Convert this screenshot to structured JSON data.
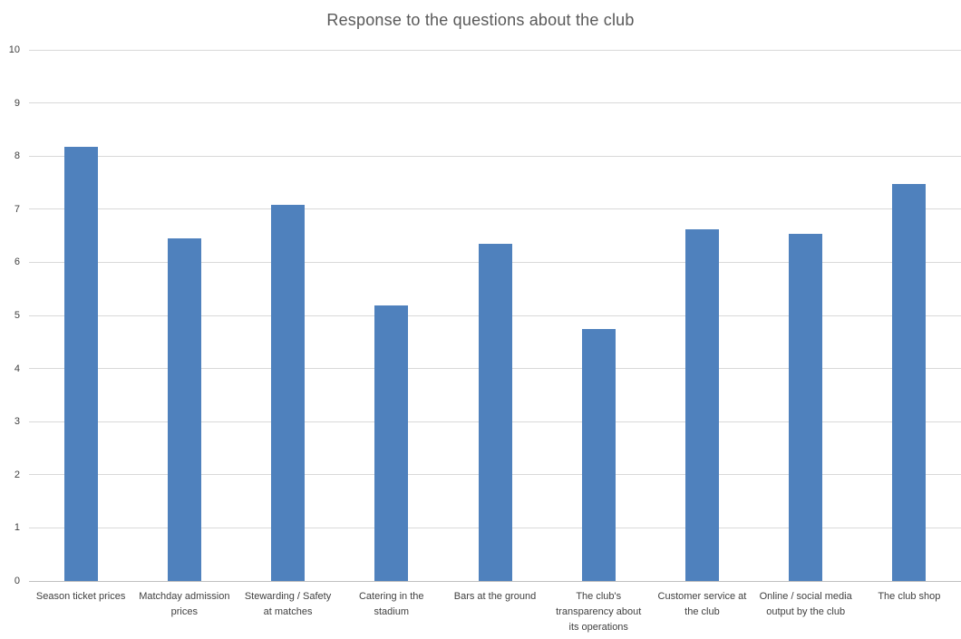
{
  "chart_data": {
    "type": "bar",
    "title": "Response to the questions about the club",
    "categories": [
      "Season ticket prices",
      "Matchday admission prices",
      "Stewarding / Safety at matches",
      "Catering in the stadium",
      "Bars at the ground",
      "The club's transparency about its operations",
      "Customer service at the club",
      "Online / social media output by the club",
      "The club shop"
    ],
    "values": [
      8.18,
      6.45,
      7.09,
      5.19,
      6.35,
      4.74,
      6.62,
      6.53,
      7.47
    ],
    "ylim": [
      0,
      10
    ],
    "yticks": [
      0,
      1,
      2,
      3,
      4,
      5,
      6,
      7,
      8,
      9,
      10
    ],
    "grid": "horizontal",
    "legend": "none",
    "xlabel": "",
    "ylabel": "",
    "colors": {
      "bar": "#4F81BD",
      "gridline": "#D9D9D9",
      "axis_line": "#BFBFBF",
      "title_text": "#595959",
      "tick_text": "#404040"
    }
  }
}
